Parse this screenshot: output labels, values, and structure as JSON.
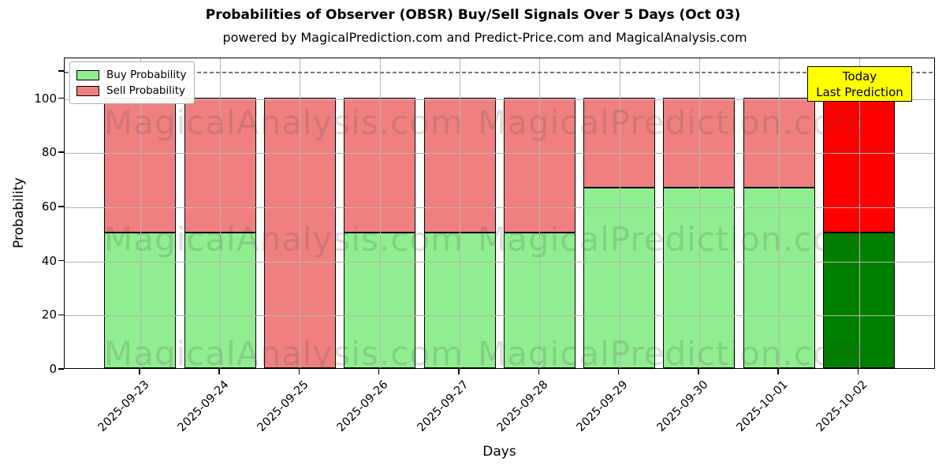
{
  "chart_data": {
    "type": "bar",
    "stacked": true,
    "title": "Probabilities of Observer (OBSR) Buy/Sell Signals Over 5 Days (Oct 03)",
    "subtitle": "powered by MagicalPrediction.com and Predict-Price.com and MagicalAnalysis.com",
    "xlabel": "Days",
    "ylabel": "Probability",
    "categories": [
      "2025-09-23",
      "2025-09-24",
      "2025-09-25",
      "2025-09-26",
      "2025-09-27",
      "2025-09-28",
      "2025-09-29",
      "2025-09-30",
      "2025-10-01",
      "2025-10-02"
    ],
    "series": [
      {
        "name": "Buy Probability",
        "color": "#90EE90",
        "today_color": "#008000",
        "values": [
          50,
          50,
          0,
          50,
          50,
          50,
          66.67,
          66.67,
          66.67,
          50
        ]
      },
      {
        "name": "Sell Probability",
        "color": "#F08080",
        "today_color": "#FF0000",
        "values": [
          50,
          50,
          100,
          50,
          50,
          50,
          33.33,
          33.33,
          33.33,
          50
        ]
      }
    ],
    "ylim": [
      0,
      115
    ],
    "yticks": [
      0,
      20,
      40,
      60,
      80,
      100
    ],
    "dashed_line_y": 110,
    "grid": true,
    "legend_position": "upper-left",
    "bar_edge_color": "#000000",
    "gridline_color": "#b5b5b5"
  },
  "annotation": {
    "line1": "Today",
    "line2": "Last Prediction",
    "bg_color": "#FFFF00"
  },
  "watermarks": {
    "left_text": "MagicalAnalysis.com",
    "right_text": "MagicalPrediction.com"
  }
}
